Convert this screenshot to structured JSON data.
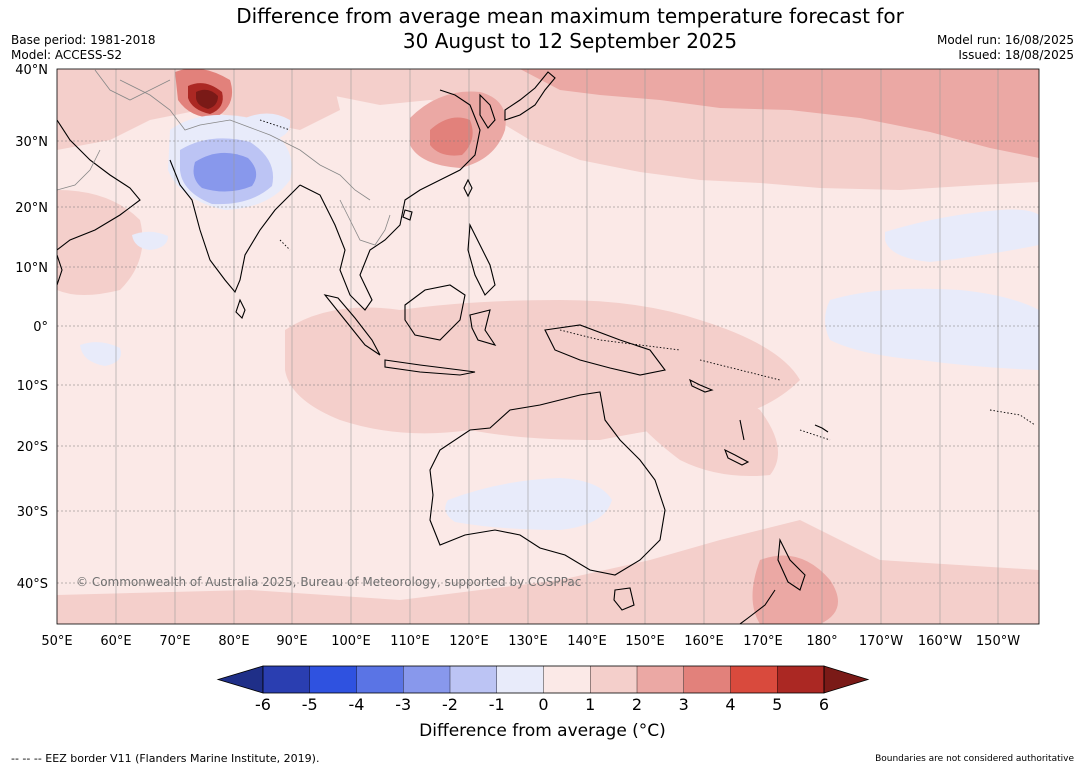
{
  "title": {
    "line1": "Difference from average mean maximum temperature forecast for",
    "line2": "30 August to 12 September 2025"
  },
  "meta": {
    "base_period": "Base period: 1981-2018",
    "model": "Model: ACCESS-S2",
    "model_run": "Model run: 16/08/2025",
    "issued": "Issued: 18/08/2025"
  },
  "map": {
    "lat_labels": [
      "40°N",
      "30°N",
      "20°N",
      "10°N",
      "0°",
      "10°S",
      "20°S",
      "30°S",
      "40°S"
    ],
    "lon_labels": [
      "50°E",
      "60°E",
      "70°E",
      "80°E",
      "90°E",
      "100°E",
      "110°E",
      "120°E",
      "130°E",
      "140°E",
      "150°E",
      "160°E",
      "170°E",
      "180°",
      "170°W",
      "160°W",
      "150°W"
    ],
    "copyright": "© Commonwealth of Australia 2025, Bureau of Meteorology, supported by COSPPac",
    "background_color": "#fbe9e7"
  },
  "colorbar": {
    "ticks": [
      "-6",
      "-5",
      "-4",
      "-3",
      "-2",
      "-1",
      "0",
      "1",
      "2",
      "3",
      "4",
      "5",
      "6"
    ],
    "colors": [
      "#1f2f88",
      "#2a3eb1",
      "#2f52e0",
      "#5a74e5",
      "#8898ec",
      "#bcc4f4",
      "#e8ebfa",
      "#fbe9e7",
      "#f4cfcb",
      "#eba8a4",
      "#e2817b",
      "#d94a3d",
      "#ab2823",
      "#7a1a17"
    ],
    "label": "Difference from average (°C)"
  },
  "footer": {
    "eez": "--  --  -- EEZ border V11 (Flanders Marine Institute, 2019).",
    "boundaries": "Boundaries are not considered authoritative"
  }
}
